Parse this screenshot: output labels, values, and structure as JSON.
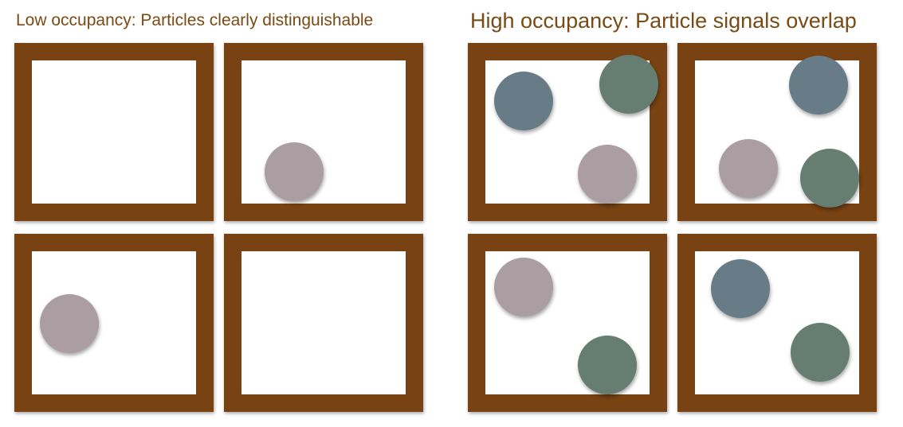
{
  "titles": {
    "left": "Low occupancy: Particles clearly distinguishable",
    "right": "High occupancy: Particle signals overlap"
  },
  "colors": {
    "frame": "#784212",
    "title_text": "#7a4a14",
    "particle_pink": "#ab9ea3",
    "particle_blue": "#687c88",
    "particle_green": "#667e71"
  },
  "panels": {
    "low_occupancy": {
      "cells": [
        {
          "particles": []
        },
        {
          "particles": [
            "pink"
          ]
        },
        {
          "particles": [
            "pink"
          ]
        },
        {
          "particles": []
        }
      ]
    },
    "high_occupancy": {
      "cells": [
        {
          "particles": [
            "blue",
            "green",
            "pink"
          ]
        },
        {
          "particles": [
            "blue",
            "pink",
            "green"
          ]
        },
        {
          "particles": [
            "pink",
            "green"
          ]
        },
        {
          "particles": [
            "blue",
            "green"
          ]
        }
      ]
    }
  }
}
